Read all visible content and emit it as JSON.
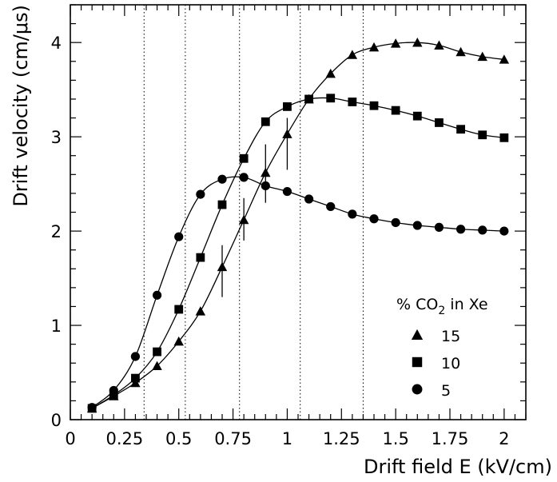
{
  "chart_data": {
    "type": "scatter",
    "title": "",
    "xlabel": "Drift field E (kV/cm)",
    "ylabel": "Drift velocity (cm/μs)",
    "xlim": [
      0,
      2.1
    ],
    "ylim": [
      0,
      4.4
    ],
    "x_ticks": [
      "0",
      "0.25",
      "0.5",
      "0.75",
      "1",
      "1.25",
      "1.5",
      "1.75",
      "2"
    ],
    "y_ticks": [
      "0",
      "1",
      "2",
      "3",
      "4"
    ],
    "vertical_reference_lines_x": [
      0.34,
      0.53,
      0.78,
      1.06,
      1.35
    ],
    "grid": false,
    "legend": {
      "title_prefix": "% CO",
      "title_sub": "2",
      "title_suffix": " in Xe",
      "placement": "lower-right",
      "entries": [
        {
          "label": "15",
          "marker": "triangle"
        },
        {
          "label": "10",
          "marker": "square"
        },
        {
          "label": "5",
          "marker": "circle"
        }
      ]
    },
    "series": [
      {
        "name": "15",
        "marker": "triangle",
        "x": [
          0.1,
          0.2,
          0.3,
          0.4,
          0.5,
          0.6,
          0.7,
          0.8,
          0.9,
          1.0,
          1.1,
          1.2,
          1.3,
          1.4,
          1.5,
          1.6,
          1.7,
          1.8,
          1.9,
          2.0
        ],
        "y": [
          0.12,
          0.25,
          0.39,
          0.57,
          0.83,
          1.15,
          1.62,
          2.12,
          2.62,
          3.03,
          3.4,
          3.67,
          3.87,
          3.95,
          3.99,
          4.0,
          3.97,
          3.9,
          3.85,
          3.82
        ],
        "error_bars": [
          {
            "x": 0.7,
            "low": 1.3,
            "high": 1.85
          },
          {
            "x": 0.8,
            "low": 1.9,
            "high": 2.35
          },
          {
            "x": 0.9,
            "low": 2.3,
            "high": 2.92
          },
          {
            "x": 1.0,
            "low": 2.65,
            "high": 3.2
          }
        ]
      },
      {
        "name": "10",
        "marker": "square",
        "x": [
          0.1,
          0.2,
          0.3,
          0.4,
          0.5,
          0.6,
          0.7,
          0.8,
          0.9,
          1.0,
          1.1,
          1.2,
          1.3,
          1.4,
          1.5,
          1.6,
          1.7,
          1.8,
          1.9,
          2.0
        ],
        "y": [
          0.12,
          0.26,
          0.44,
          0.72,
          1.17,
          1.72,
          2.28,
          2.77,
          3.16,
          3.32,
          3.4,
          3.41,
          3.37,
          3.33,
          3.28,
          3.22,
          3.15,
          3.08,
          3.02,
          2.99
        ]
      },
      {
        "name": "5",
        "marker": "circle",
        "x": [
          0.1,
          0.2,
          0.3,
          0.4,
          0.5,
          0.6,
          0.7,
          0.8,
          0.9,
          1.0,
          1.1,
          1.2,
          1.3,
          1.4,
          1.5,
          1.6,
          1.7,
          1.8,
          1.9,
          2.0
        ],
        "y": [
          0.13,
          0.31,
          0.67,
          1.32,
          1.94,
          2.39,
          2.55,
          2.57,
          2.48,
          2.42,
          2.34,
          2.26,
          2.18,
          2.13,
          2.09,
          2.06,
          2.04,
          2.02,
          2.01,
          2.0
        ]
      }
    ]
  }
}
